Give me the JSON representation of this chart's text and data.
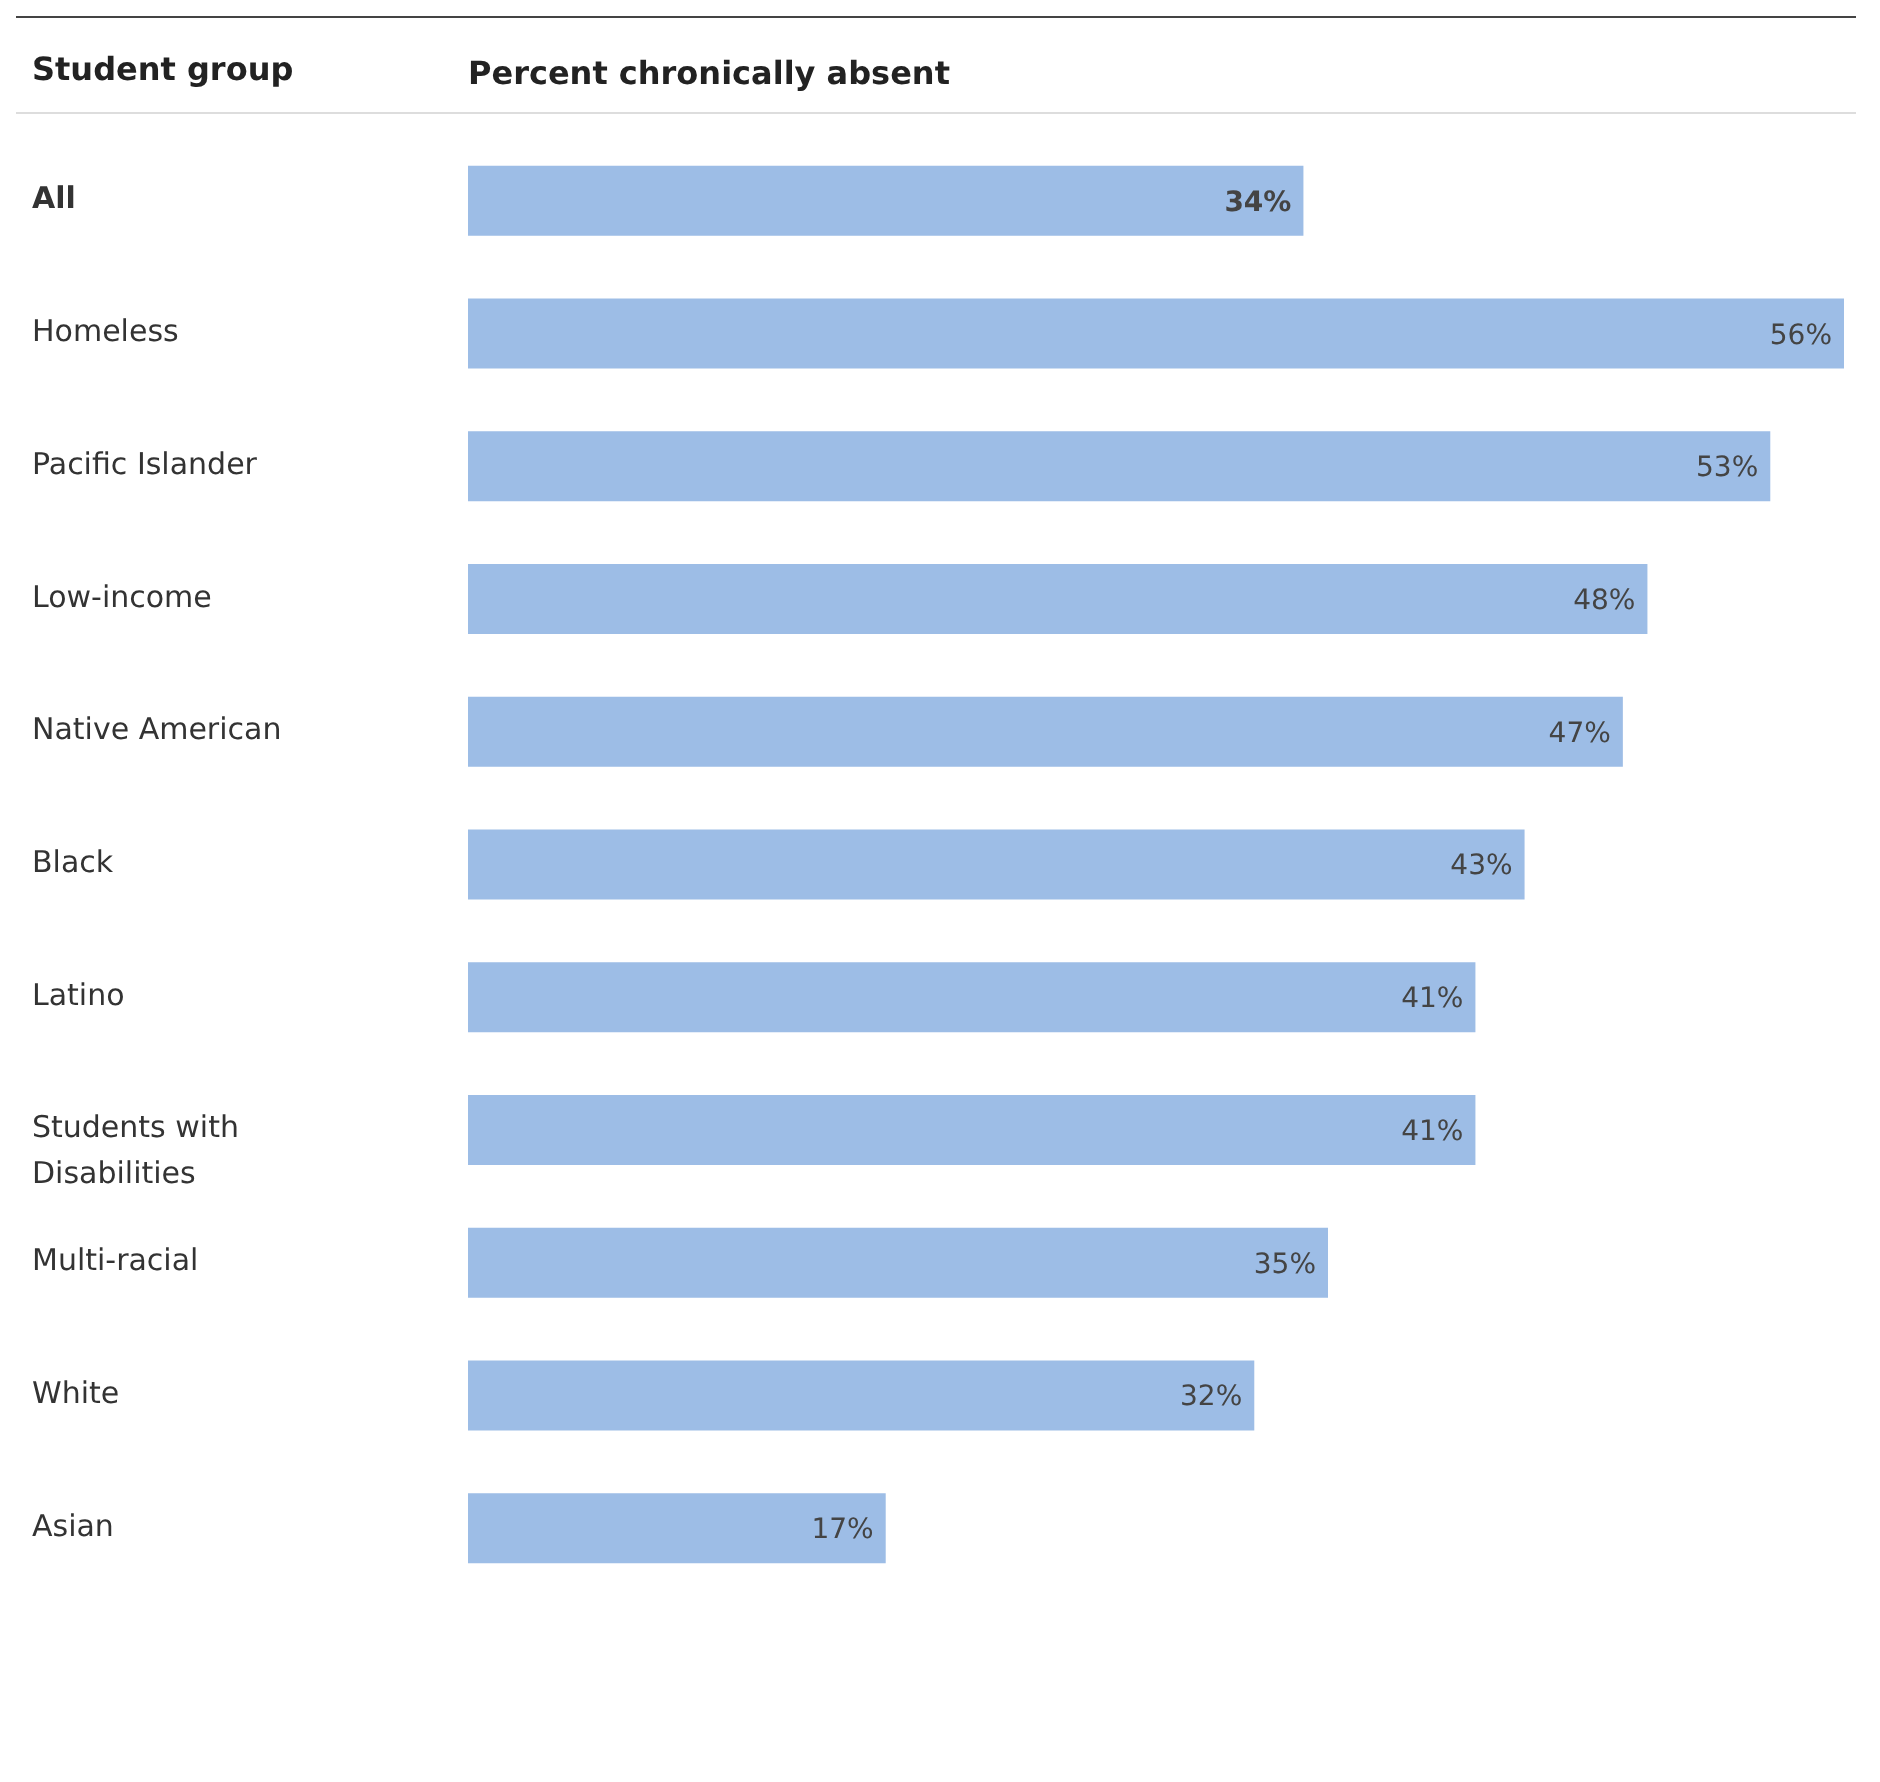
{
  "chart_data": {
    "type": "bar",
    "orientation": "horizontal",
    "xlabel": "Percent chronically absent",
    "ylabel": "Student group",
    "categories": [
      "All",
      "Homeless",
      "Pacific Islander",
      "Low-income",
      "Native American",
      "Black",
      "Latino",
      "Students with Disabilities",
      "Multi-racial",
      "White",
      "Asian"
    ],
    "values": [
      34,
      56,
      53,
      48,
      47,
      43,
      41,
      41,
      35,
      32,
      17
    ],
    "value_labels": [
      "34%",
      "56%",
      "53%",
      "48%",
      "47%",
      "43%",
      "41%",
      "41%",
      "35%",
      "32%",
      "17%"
    ],
    "color": "#9dbde6",
    "tick_labels": "y"
  }
}
